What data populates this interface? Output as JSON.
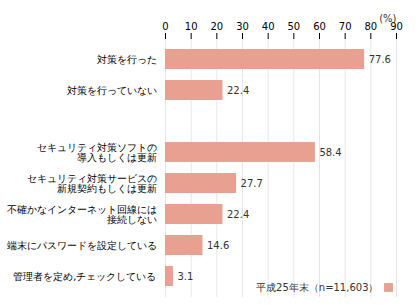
{
  "chart_data": {
    "type": "bar",
    "orientation": "horizontal",
    "categories": [
      "対策を行った",
      "対策を行っていない",
      null,
      "セキュリティ対策ソフトの\n導入もしくは更新",
      "セキュリティ対策サービスの\n新規契約もしくは更新",
      "不確かなインターネット回線には\n接続しない",
      "端末にパスワードを設定している",
      "管理者を定め,チェックしている"
    ],
    "series": [
      {
        "name": "平成25年末（n=11,603）",
        "color": "#e8a090",
        "values": [
          77.6,
          22.4,
          0,
          58.4,
          27.7,
          22.4,
          14.6,
          3.1
        ]
      }
    ],
    "xlabel": "(%)",
    "xlim": [
      0,
      90
    ],
    "xticks": [
      0,
      10,
      20,
      30,
      40,
      50,
      60,
      70,
      80,
      90
    ],
    "grid": true,
    "legend": "lower right",
    "data_labels": true
  }
}
